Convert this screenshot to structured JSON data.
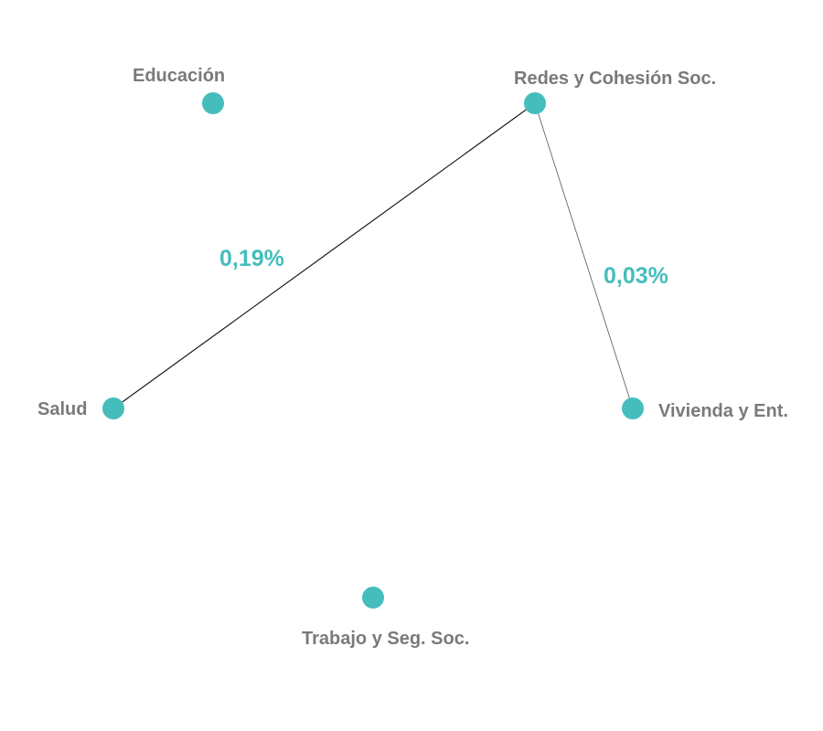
{
  "diagram": {
    "node_color": "#45bdbc",
    "label_color": "#7a7a7a",
    "edge_label_color": "#45bdbc",
    "nodes": [
      {
        "id": "educacion",
        "label": "Educación"
      },
      {
        "id": "redes",
        "label": "Redes y Cohesión Soc."
      },
      {
        "id": "salud",
        "label": "Salud"
      },
      {
        "id": "vivienda",
        "label": "Vivienda y Ent."
      },
      {
        "id": "trabajo",
        "label": "Trabajo y Seg. Soc."
      }
    ],
    "edges": [
      {
        "from": "salud",
        "to": "redes",
        "label": "0,19%"
      },
      {
        "from": "redes",
        "to": "vivienda",
        "label": "0,03%"
      }
    ]
  }
}
